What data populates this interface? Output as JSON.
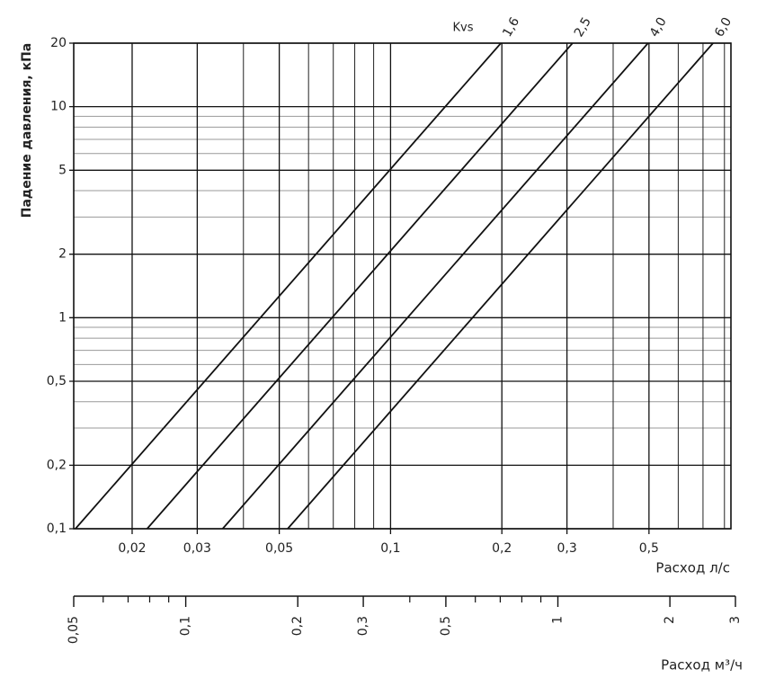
{
  "chart_data": {
    "type": "line",
    "y_label": "Падение давления, кПа",
    "x_label": "Расход  л/с",
    "x2_label": "Расход м³/ч",
    "legend_title": "Kvs",
    "log_x": true,
    "log_y": true,
    "grid": true,
    "minor_grid": true,
    "xlim": [
      0.0139,
      0.833
    ],
    "xticks": [
      {
        "value": 0.02,
        "label": "0,02"
      },
      {
        "value": 0.03,
        "label": "0,03"
      },
      {
        "value": 0.05,
        "label": "0,05"
      },
      {
        "value": 0.1,
        "label": "0,1"
      },
      {
        "value": 0.2,
        "label": "0,2"
      },
      {
        "value": 0.3,
        "label": "0,3"
      },
      {
        "value": 0.5,
        "label": "0,5"
      }
    ],
    "x2lim": [
      0.05,
      3
    ],
    "x2ticks": [
      {
        "value": 0.05,
        "label": "0,05"
      },
      {
        "value": 0.1,
        "label": "0,1"
      },
      {
        "value": 0.2,
        "label": "0,2"
      },
      {
        "value": 0.3,
        "label": "0,3"
      },
      {
        "value": 0.5,
        "label": "0,5"
      },
      1,
      2,
      3
    ],
    "ylim": [
      0.1,
      20
    ],
    "yticks": [
      {
        "value": 0.1,
        "label": "0,1"
      },
      {
        "value": 0.2,
        "label": "0,2"
      },
      {
        "value": 0.5,
        "label": "0,5"
      },
      1,
      2,
      5,
      10,
      20
    ],
    "series": [
      {
        "name": "1,6",
        "color": "#111111",
        "x": [
          0.01405,
          0.1988
        ],
        "values": [
          0.1,
          20
        ]
      },
      {
        "name": "2,5",
        "color": "#111111",
        "x": [
          0.02196,
          0.3106
        ],
        "values": [
          0.1,
          20
        ]
      },
      {
        "name": "4,0",
        "color": "#111111",
        "x": [
          0.03514,
          0.497
        ],
        "values": [
          0.1,
          20
        ]
      },
      {
        "name": "6,0",
        "color": "#111111",
        "x": [
          0.0527,
          0.745
        ],
        "values": [
          0.1,
          20
        ]
      }
    ]
  }
}
